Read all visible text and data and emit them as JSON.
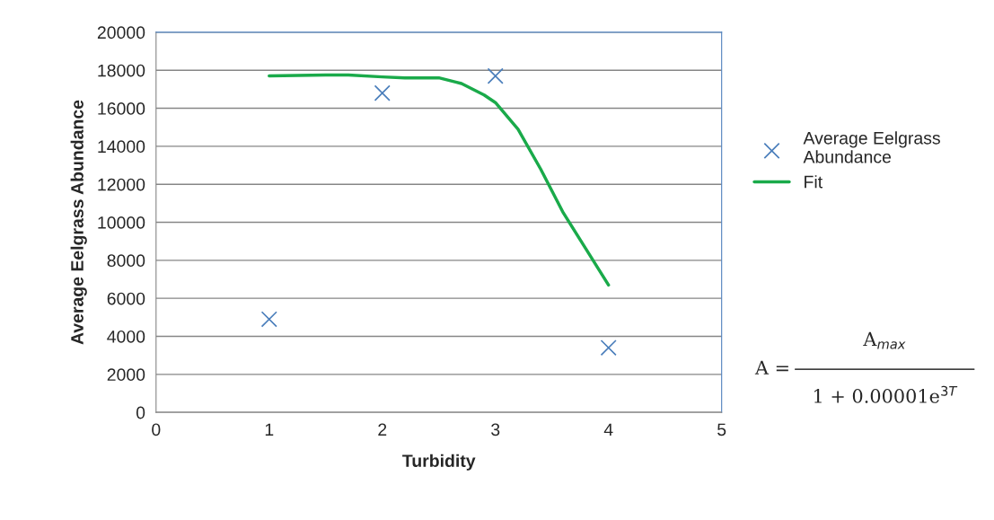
{
  "chart_data": {
    "type": "scatter",
    "xlabel": "Turbidity",
    "ylabel": "Average Eelgrass Abundance",
    "xlim": [
      0,
      5
    ],
    "xticks": [
      0,
      1,
      2,
      3,
      4,
      5
    ],
    "ylim": [
      0,
      20000
    ],
    "yticks": [
      0,
      2000,
      4000,
      6000,
      8000,
      10000,
      12000,
      14000,
      16000,
      18000,
      20000
    ],
    "grid": "y",
    "legend": "right",
    "marker": "cross",
    "series": [
      {
        "name": "Average Eelgrass\nAbundance",
        "color": "#4a7ebb",
        "x": [
          1,
          2,
          3,
          4
        ],
        "values": [
          4900,
          16800,
          17700,
          3400
        ]
      },
      {
        "name": "Fit",
        "type": "line",
        "color": "#1aaa4a",
        "line_style": "solid",
        "marker": "none",
        "x": [
          1,
          1.5,
          1.7,
          2,
          2.2,
          2.5,
          2.7,
          2.9,
          3,
          3.2,
          3.4,
          3.6,
          3.8,
          4
        ],
        "values": [
          17700,
          17750,
          17750,
          17650,
          17600,
          17600,
          17300,
          16700,
          16300,
          14900,
          12800,
          10500,
          8600,
          6700
        ]
      }
    ],
    "annotations": [
      "A =",
      "A$_{max}$",
      "1 + 0.00001e$^{3T}$"
    ]
  }
}
